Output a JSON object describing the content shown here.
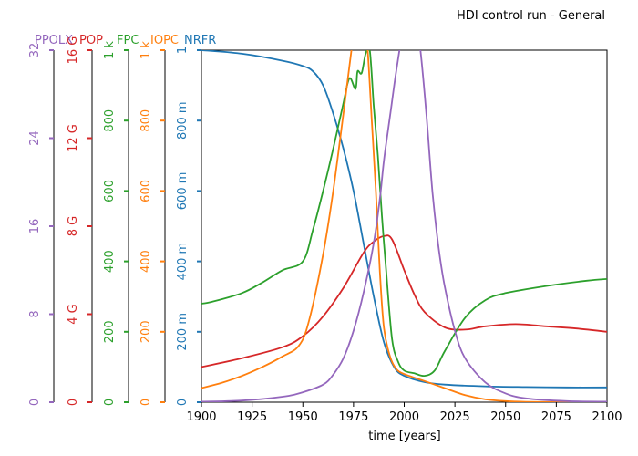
{
  "chart_data": {
    "type": "line",
    "title": "HDI control run - General",
    "xlabel": "time [years]",
    "xlim": [
      1900,
      2100
    ],
    "xticks": [
      "1900",
      "1925",
      "1950",
      "1975",
      "2000",
      "2025",
      "2050",
      "2075",
      "2100"
    ],
    "grid": false,
    "axes": [
      {
        "key": "ppolx",
        "label": "PPOLX",
        "color": "#9467bd",
        "range": [
          0,
          32
        ],
        "tick_values": [
          0,
          8,
          16,
          24,
          32
        ],
        "tick_labels": [
          "0",
          "8",
          "16",
          "24",
          "32"
        ]
      },
      {
        "key": "pop",
        "label": "POP",
        "color": "#d62728",
        "range": [
          0,
          16000000000
        ],
        "tick_values": [
          0,
          4000000000,
          8000000000,
          12000000000,
          16000000000
        ],
        "tick_labels": [
          "0",
          "4 G",
          "8 G",
          "12 G",
          "16 G"
        ]
      },
      {
        "key": "fpc",
        "label": "FPC",
        "color": "#2ca02c",
        "range": [
          0,
          1000
        ],
        "tick_values": [
          0,
          200,
          400,
          600,
          800,
          1000
        ],
        "tick_labels": [
          "0",
          "200",
          "400",
          "600",
          "800",
          "1 k"
        ]
      },
      {
        "key": "iopc",
        "label": "IOPC",
        "color": "#ff7f0e",
        "range": [
          0,
          1000
        ],
        "tick_values": [
          0,
          200,
          400,
          600,
          800,
          1000
        ],
        "tick_labels": [
          "0",
          "200",
          "400",
          "600",
          "800",
          "1 k"
        ]
      },
      {
        "key": "nrfr",
        "label": "NRFR",
        "color": "#1f77b4",
        "range": [
          0,
          1
        ],
        "tick_values": [
          0,
          0.2,
          0.4,
          0.6,
          0.8,
          1
        ],
        "tick_labels": [
          "0",
          "200 m",
          "400 m",
          "600 m",
          "800 m",
          "1"
        ]
      }
    ],
    "series": [
      {
        "name": "NRFR",
        "axis": "nrfr",
        "x": [
          1900,
          1920,
          1940,
          1950,
          1955,
          1960,
          1965,
          1970,
          1975,
          1980,
          1985,
          1990,
          1995,
          2000,
          2010,
          2020,
          2040,
          2060,
          2080,
          2100
        ],
        "values": [
          1.0,
          0.99,
          0.97,
          0.955,
          0.94,
          0.9,
          0.82,
          0.72,
          0.6,
          0.45,
          0.3,
          0.17,
          0.1,
          0.075,
          0.057,
          0.05,
          0.045,
          0.043,
          0.042,
          0.042
        ]
      },
      {
        "name": "POP",
        "axis": "pop",
        "x": [
          1900,
          1920,
          1940,
          1950,
          1960,
          1970,
          1980,
          1985,
          1990,
          1994,
          2000,
          2005,
          2010,
          2020,
          2030,
          2040,
          2055,
          2070,
          2085,
          2100
        ],
        "values": [
          1600000000,
          2000000000,
          2500000000,
          3000000000,
          3900000000,
          5200000000,
          6800000000,
          7300000000,
          7550000000,
          7400000000,
          6000000000,
          4900000000,
          4100000000,
          3400000000,
          3300000000,
          3450000000,
          3550000000,
          3450000000,
          3350000000,
          3200000000
        ]
      },
      {
        "name": "FPC",
        "axis": "fpc",
        "x": [
          1900,
          1905,
          1920,
          1930,
          1940,
          1950,
          1955,
          1960,
          1965,
          1970,
          1973,
          1976,
          1977,
          1979,
          1981,
          1983,
          1985,
          1987,
          1989,
          1991,
          1994,
          1997,
          2000,
          2005,
          2010,
          2015,
          2020,
          2030,
          2040,
          2050,
          2070,
          2090,
          2100
        ],
        "values": [
          280,
          285,
          310,
          340,
          375,
          400,
          490,
          600,
          720,
          850,
          920,
          890,
          940,
          935,
          990,
          1000,
          840,
          700,
          530,
          380,
          180,
          115,
          90,
          82,
          75,
          90,
          145,
          240,
          290,
          310,
          330,
          345,
          350
        ]
      },
      {
        "name": "IOPC",
        "axis": "iopc",
        "x": [
          1900,
          1910,
          1920,
          1930,
          1940,
          1948,
          1953,
          1960,
          1965,
          1970,
          1974,
          1976,
          1980,
          1982,
          1984,
          1986,
          1988,
          1990,
          1993,
          1996,
          2000,
          2010,
          2020,
          2030,
          2040,
          2050,
          2060,
          2080,
          2100
        ],
        "values": [
          40,
          55,
          75,
          100,
          130,
          160,
          230,
          420,
          600,
          820,
          1000,
          1100,
          1100,
          1000,
          800,
          600,
          370,
          210,
          130,
          95,
          80,
          60,
          40,
          20,
          8,
          3,
          1,
          0,
          0
        ]
      },
      {
        "name": "PPOLX",
        "axis": "ppolx",
        "x": [
          1900,
          1920,
          1940,
          1950,
          1960,
          1965,
          1970,
          1975,
          1980,
          1985,
          1988,
          1990,
          1993,
          1996,
          2000,
          2003,
          2006,
          2008,
          2011,
          2014,
          2017,
          2020,
          2025,
          2030,
          2040,
          2050,
          2060,
          2080,
          2100
        ],
        "values": [
          0.05,
          0.15,
          0.5,
          0.9,
          1.6,
          2.5,
          4.0,
          6.5,
          10.0,
          14.5,
          18.5,
          22.0,
          26.0,
          30.0,
          34.5,
          36.0,
          34.5,
          32.0,
          26.0,
          19.0,
          14.0,
          10.5,
          6.5,
          4.0,
          1.8,
          0.8,
          0.35,
          0.1,
          0.05
        ]
      }
    ]
  }
}
